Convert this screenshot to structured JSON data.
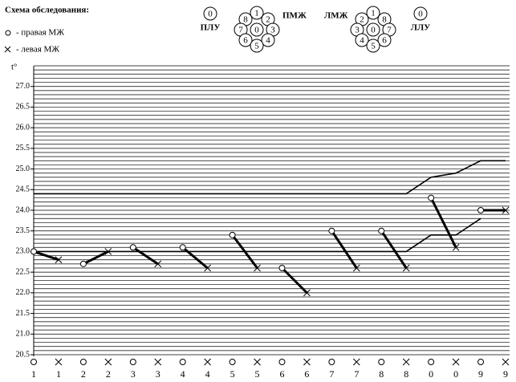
{
  "header": {
    "title": "Схема обследования:",
    "legend": [
      "- правая МЖ",
      "- левая МЖ"
    ],
    "scheme": {
      "plu_node": "0",
      "plu": "ПЛУ",
      "pmzh": "ПМЖ",
      "pmzh_nodes": [
        "8",
        "1",
        "2",
        "7",
        "0",
        "3",
        "6",
        "4",
        "5"
      ],
      "lmzh": "ЛМЖ",
      "lmzh_nodes": [
        "2",
        "1",
        "8",
        "3",
        "0",
        "7",
        "4",
        "6",
        "5"
      ],
      "llu_node": "0",
      "llu": "ЛЛУ"
    }
  },
  "chart_data": {
    "type": "line",
    "y_label": "t°",
    "categories": [
      "1",
      "1",
      "2",
      "2",
      "3",
      "3",
      "4",
      "4",
      "5",
      "5",
      "6",
      "6",
      "7",
      "7",
      "8",
      "8",
      "0",
      "0",
      "9",
      "9"
    ],
    "values": [
      23.0,
      22.8,
      22.7,
      23.0,
      23.1,
      22.7,
      23.1,
      22.6,
      23.4,
      22.6,
      22.6,
      22.0,
      23.5,
      22.6,
      23.5,
      22.6,
      24.3,
      23.1,
      24.0,
      24.0
    ],
    "norm_lines": [
      [
        24.4,
        24.4,
        24.4,
        24.4,
        24.4,
        24.4,
        24.4,
        24.4,
        24.4,
        24.4,
        24.4,
        24.4,
        24.4,
        24.4,
        24.4,
        24.4,
        24.8,
        24.9,
        25.2,
        25.2
      ],
      [
        23.0,
        23.0,
        23.0,
        23.0,
        23.0,
        23.0,
        23.0,
        23.0,
        23.0,
        23.0,
        23.0,
        23.0,
        23.0,
        23.0,
        23.0,
        23.0,
        23.4,
        23.4,
        23.8,
        null
      ]
    ],
    "ylim": [
      20.5,
      27.5
    ],
    "yticks": [
      {
        "value": 20.5,
        "label": "20.5"
      },
      {
        "value": 21.0,
        "label": "21.0"
      },
      {
        "value": 21.5,
        "label": "21.5"
      },
      {
        "value": 22.0,
        "label": "22.0"
      },
      {
        "value": 22.5,
        "label": "22.5"
      },
      {
        "value": 23.0,
        "label": "23.0"
      },
      {
        "value": 23.5,
        "label": "23.5"
      },
      {
        "value": 24.0,
        "label": "24.0"
      },
      {
        "value": 24.5,
        "label": "24.5"
      },
      {
        "value": 25.0,
        "label": "25.0"
      },
      {
        "value": 25.5,
        "label": "25.5"
      },
      {
        "value": 26.0,
        "label": "26.0"
      },
      {
        "value": 26.5,
        "label": "26.5"
      },
      {
        "value": 27.0,
        "label": "27.0"
      }
    ],
    "minor_grid_step": 0.1,
    "color": "#000000"
  }
}
